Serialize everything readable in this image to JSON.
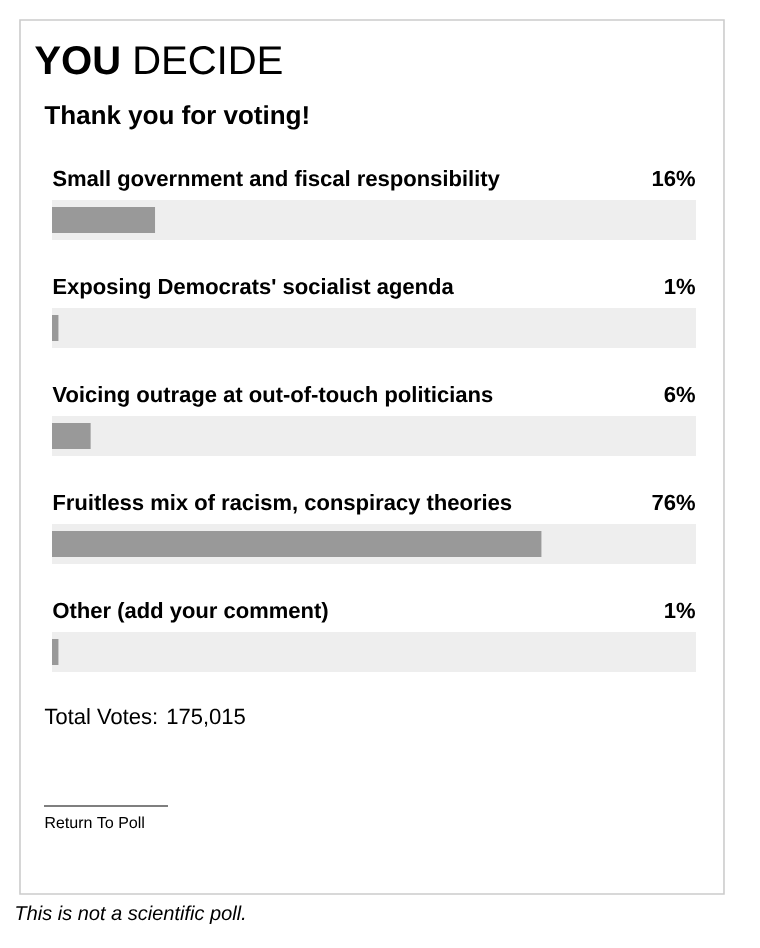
{
  "chart_data": {
    "type": "bar",
    "orientation": "horizontal",
    "title": "**YOU** DECIDE",
    "subtitle": "Thank you for voting!",
    "categories": [
      "Small government and fiscal responsibility",
      "Exposing Democrats' socialist agenda",
      "Voicing outrage at out-of-touch politicians",
      "Fruitless mix of racism, conspiracy theories",
      "Other (add your comment)"
    ],
    "values": [
      16,
      1,
      6,
      76,
      1
    ],
    "value_labels": [
      "16%",
      "1%",
      "6%",
      "76%",
      "1%"
    ],
    "color": "#999999",
    "xlim": [
      0,
      100
    ],
    "tick_labels": false,
    "legend": false,
    "annotations": [
      "Total Votes: 175,015",
      "Return To Poll",
      "This is not a scientific poll."
    ]
  }
}
